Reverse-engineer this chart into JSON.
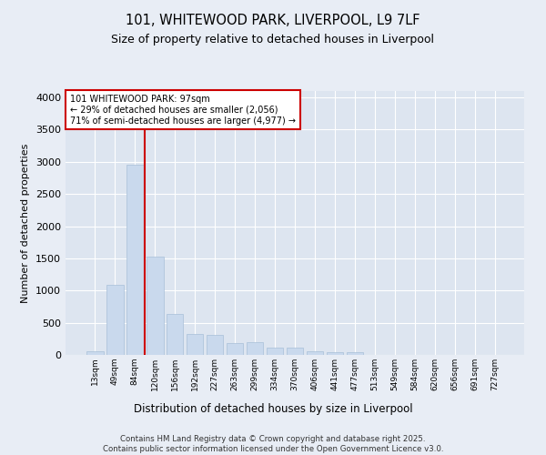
{
  "title_line1": "101, WHITEWOOD PARK, LIVERPOOL, L9 7LF",
  "title_line2": "Size of property relative to detached houses in Liverpool",
  "xlabel": "Distribution of detached houses by size in Liverpool",
  "ylabel": "Number of detached properties",
  "annotation_line1": "101 WHITEWOOD PARK: 97sqm",
  "annotation_line2": "← 29% of detached houses are smaller (2,056)",
  "annotation_line3": "71% of semi-detached houses are larger (4,977) →",
  "bar_color": "#c9d9ed",
  "bar_edgecolor": "#a8bfd8",
  "vline_color": "#cc0000",
  "annotation_box_edgecolor": "#cc0000",
  "fig_background_color": "#e8edf5",
  "ax_background_color": "#dde5f0",
  "grid_color": "#ffffff",
  "categories": [
    "13sqm",
    "49sqm",
    "84sqm",
    "120sqm",
    "156sqm",
    "192sqm",
    "227sqm",
    "263sqm",
    "299sqm",
    "334sqm",
    "370sqm",
    "406sqm",
    "441sqm",
    "477sqm",
    "513sqm",
    "549sqm",
    "584sqm",
    "620sqm",
    "656sqm",
    "691sqm",
    "727sqm"
  ],
  "bar_values": [
    60,
    1090,
    2960,
    1530,
    640,
    320,
    310,
    190,
    200,
    115,
    115,
    60,
    45,
    45,
    0,
    0,
    0,
    0,
    0,
    0,
    0
  ],
  "ylim": [
    0,
    4100
  ],
  "yticks": [
    0,
    500,
    1000,
    1500,
    2000,
    2500,
    3000,
    3500,
    4000
  ],
  "vline_x_index": 2.5,
  "footer_line1": "Contains HM Land Registry data © Crown copyright and database right 2025.",
  "footer_line2": "Contains public sector information licensed under the Open Government Licence v3.0."
}
